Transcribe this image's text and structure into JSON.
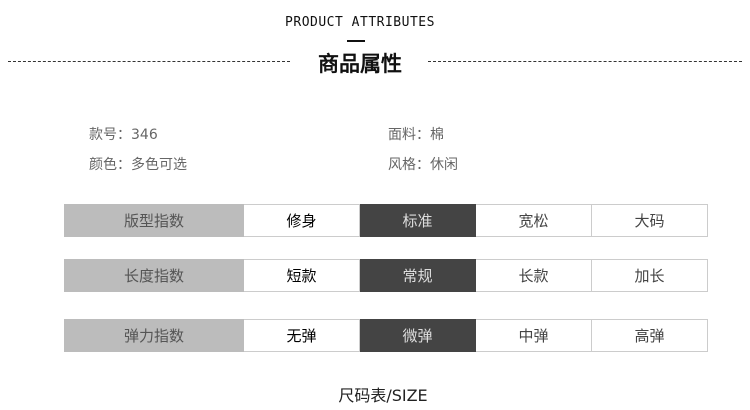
{
  "header": {
    "en_title": "PRODUCT ATTRIBUTES",
    "cn_title": "商品属性"
  },
  "attributes": [
    {
      "label": "款号：346"
    },
    {
      "label": "面料：棉"
    },
    {
      "label": "颜色：多色可选"
    },
    {
      "label": "风格：休闲"
    }
  ],
  "indices": [
    {
      "label": "版型指数",
      "options": [
        "修身",
        "标准",
        "宽松",
        "大码"
      ],
      "selected": "标准"
    },
    {
      "label": "长度指数",
      "options": [
        "短款",
        "常规",
        "长款",
        "加长"
      ],
      "selected": "常规"
    },
    {
      "label": "弹力指数",
      "options": [
        "无弹",
        "微弹",
        "中弹",
        "高弹"
      ],
      "selected": "微弹"
    }
  ],
  "colors": {
    "selected_bg": "#444444",
    "label_bg": "#bcbcbc"
  },
  "footer": {
    "size_title": "尺码表/SIZE"
  }
}
